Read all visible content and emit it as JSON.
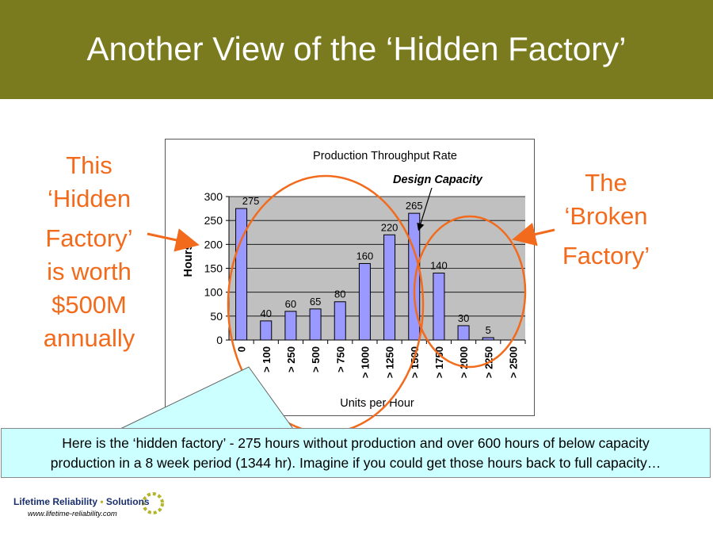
{
  "slide": {
    "title": "Another View of the ‘Hidden Factory’",
    "left_annotation": [
      "This",
      "‘Hidden",
      "Factory’",
      "is worth",
      "$500M",
      "annually"
    ],
    "right_annotation": [
      "The",
      "‘Broken",
      "Factory’"
    ],
    "callout_lines": [
      "Here is the ‘hidden factory’ - 275 hours without production and over 600 hours of below capacity",
      "production in a 8 week period (1344 hr).  Imagine if you could get those hours back to full capacity…"
    ],
    "logo": {
      "name_part1": "Lifetime Reliability",
      "name_part2": "Solutions",
      "url": "www.lifetime-reliability.com"
    }
  },
  "colors": {
    "title_bar": "#7a7a1e",
    "annotation": "#f26b1d",
    "bar_fill": "#9999ff",
    "plot_bg": "#c0c0c0",
    "callout_bg": "#ccffff"
  },
  "chart_data": {
    "type": "bar",
    "title": "Production Throughput Rate",
    "xlabel": "Units per Hour",
    "ylabel": "Hours",
    "categories": [
      "0",
      "> 100",
      "> 250",
      "> 500",
      "> 750",
      "> 1000",
      "> 1250",
      "> 1500",
      "> 1750",
      "> 2000",
      "> 2250",
      "> 2500"
    ],
    "values": [
      275,
      40,
      60,
      65,
      80,
      160,
      220,
      265,
      140,
      30,
      5,
      0
    ],
    "data_labels": [
      "275",
      "40",
      "60",
      "65",
      "80",
      "160",
      "220",
      "265",
      "140",
      "30",
      "5",
      ""
    ],
    "ylim": [
      0,
      300
    ],
    "yticks": [
      0,
      50,
      100,
      150,
      200,
      250,
      300
    ],
    "grid": true,
    "annotation": "Design Capacity",
    "annotation_category_index": 7
  }
}
